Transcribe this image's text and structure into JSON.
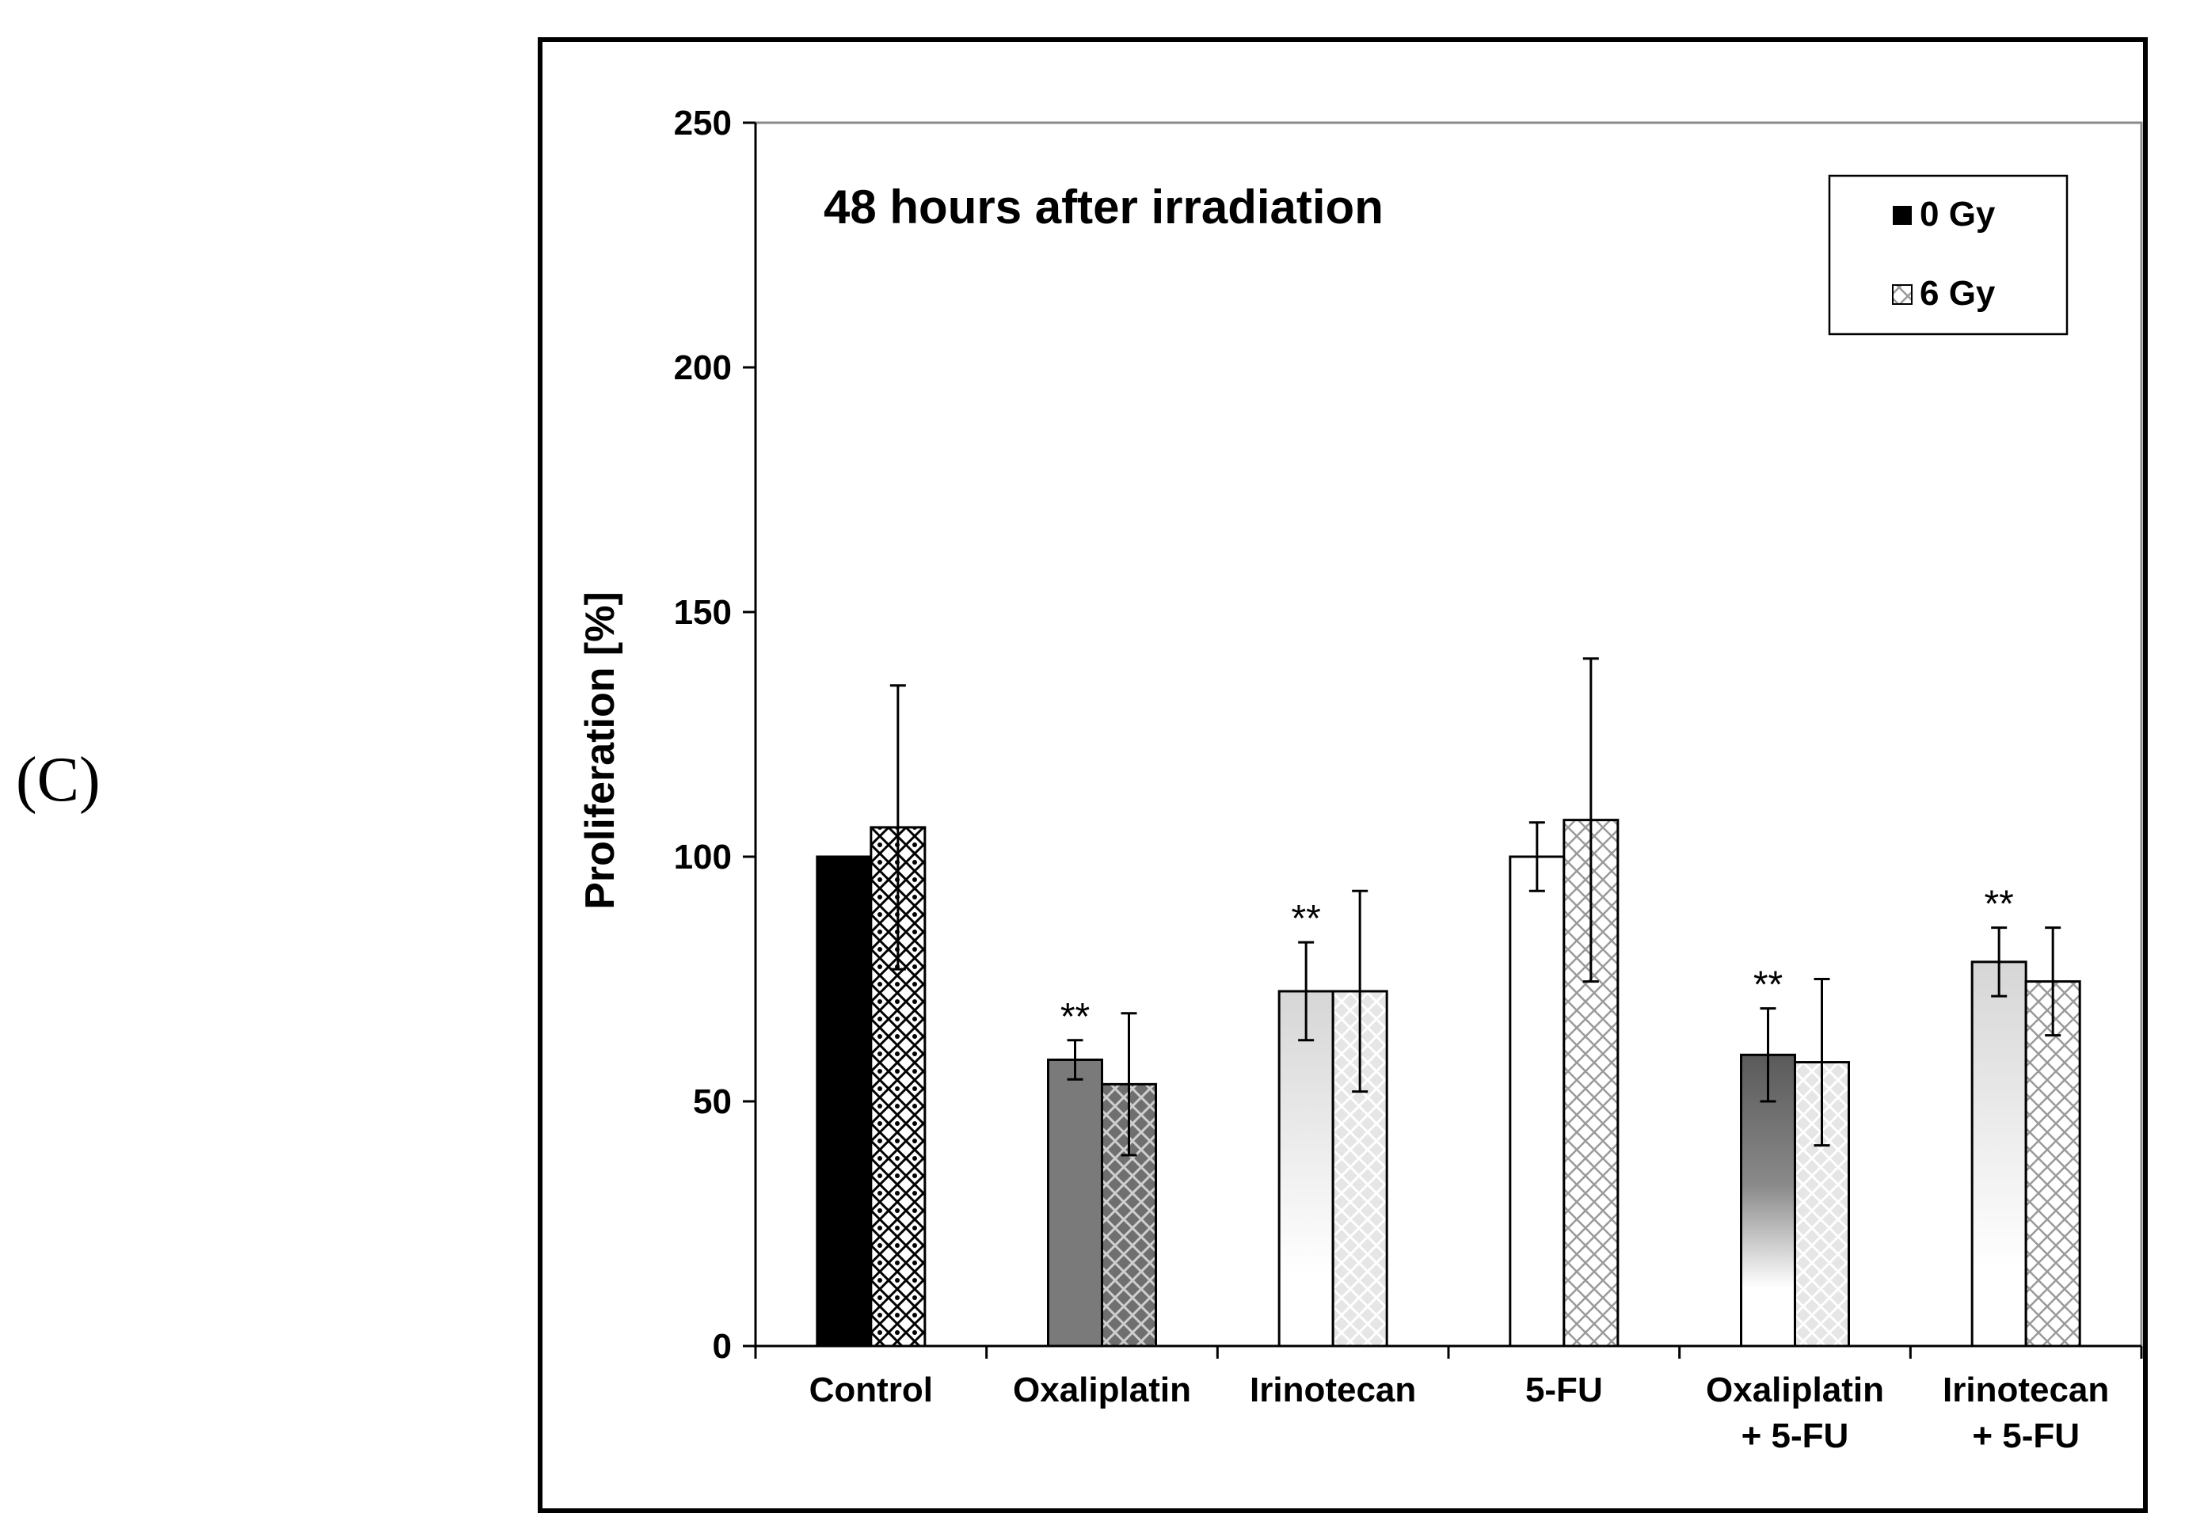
{
  "panel_label": "(C)",
  "chart_data": {
    "type": "bar",
    "title": "48 hours after irradiation",
    "ylabel": "Proliferation [%]",
    "xlabel": "",
    "ylim": [
      0,
      250
    ],
    "yticks": [
      0,
      50,
      100,
      150,
      200,
      250
    ],
    "grid": false,
    "legend_position": "top-right",
    "categories": [
      [
        "Control"
      ],
      [
        "Oxaliplatin"
      ],
      [
        "Irinotecan"
      ],
      [
        "5-FU"
      ],
      [
        "Oxaliplatin",
        "+ 5-FU"
      ],
      [
        "Irinotecan",
        "+ 5-FU"
      ]
    ],
    "series": [
      {
        "name": "0 Gy",
        "values": [
          100,
          58.5,
          72.5,
          100,
          59.5,
          78.5
        ],
        "error": [
          0,
          4,
          10,
          7,
          9.5,
          7
        ]
      },
      {
        "name": "6 Gy",
        "values": [
          106,
          53.5,
          72.5,
          107.5,
          58,
          74.5
        ],
        "error": [
          29,
          14.5,
          20.5,
          33,
          17,
          11
        ]
      }
    ],
    "bar_colors": [
      "#000000",
      "#7a7a7a",
      "#d9d9d9",
      "#ffffff",
      "#7a7a7a",
      "#e0e0e0"
    ],
    "significance": [
      "",
      "**",
      "**",
      "",
      "**",
      "**"
    ]
  }
}
